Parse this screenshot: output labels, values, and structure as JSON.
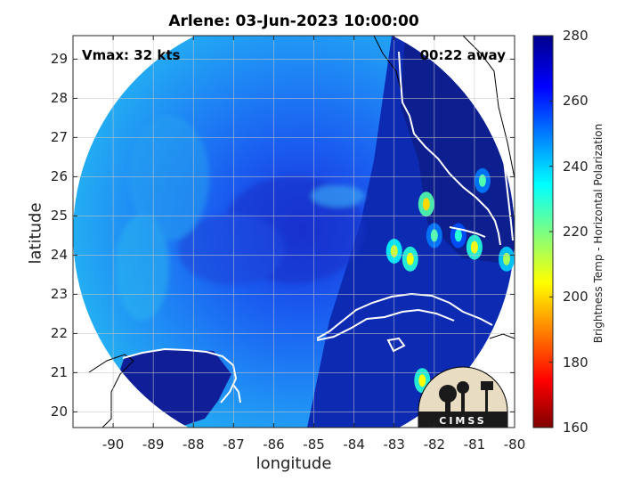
{
  "title": "Arlene: 03-Jun-2023 10:00:00",
  "xlabel": "longitude",
  "ylabel": "latitude",
  "colorbar_label": "Brightness Temp - Horizontal Polarization",
  "annotations": {
    "vmax": "Vmax: 32 kts",
    "time_away": "00:22 away"
  },
  "logo_text": "CIMSS",
  "colors": {
    "cold_min": "#7a0000",
    "warm_max": "#0a0a8c",
    "coastline": "#ffffff",
    "land_outline": "#000000"
  },
  "chart_data": {
    "type": "heatmap",
    "title": "Arlene: 03-Jun-2023 10:00:00",
    "xlabel": "longitude",
    "ylabel": "latitude",
    "xlim": [
      -91,
      -80
    ],
    "ylim": [
      19.6,
      29.6
    ],
    "x_ticks": [
      "-90",
      "-89",
      "-88",
      "-87",
      "-86",
      "-85",
      "-84",
      "-83",
      "-82",
      "-81",
      "-80"
    ],
    "y_ticks": [
      "20",
      "21",
      "22",
      "23",
      "24",
      "25",
      "26",
      "27",
      "28",
      "29"
    ],
    "colorbar": {
      "label": "Brightness Temp - Horizontal Polarization",
      "range": [
        160,
        280
      ],
      "ticks": [
        "160",
        "180",
        "200",
        "220",
        "240",
        "260",
        "280"
      ],
      "colormap": "jet"
    },
    "grid": true,
    "storm_center": {
      "lon": -85.4,
      "lat": 24.8
    },
    "swath_radius_deg": 5.2,
    "cold_cells": [
      {
        "lon": -82.2,
        "lat": 25.3,
        "temp": 200
      },
      {
        "lon": -82.0,
        "lat": 24.5,
        "temp": 225
      },
      {
        "lon": -82.6,
        "lat": 23.9,
        "temp": 205
      },
      {
        "lon": -83.0,
        "lat": 24.1,
        "temp": 210
      },
      {
        "lon": -81.0,
        "lat": 24.2,
        "temp": 205
      },
      {
        "lon": -80.8,
        "lat": 25.9,
        "temp": 225
      },
      {
        "lon": -80.2,
        "lat": 23.9,
        "temp": 215
      },
      {
        "lon": -81.4,
        "lat": 24.5,
        "temp": 230
      },
      {
        "lon": -82.3,
        "lat": 20.8,
        "temp": 205
      }
    ],
    "annotations": [
      "Vmax: 32 kts",
      "00:22 away"
    ]
  }
}
